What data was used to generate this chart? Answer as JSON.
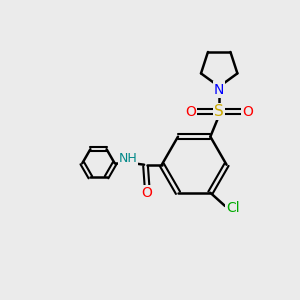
{
  "background_color": "#ebebeb",
  "bond_color": "#000000",
  "atom_colors": {
    "N": "#0000ff",
    "O": "#ff0000",
    "S": "#ccaa00",
    "Cl": "#00aa00",
    "H": "#008888",
    "C": "#000000"
  },
  "figsize": [
    3.0,
    3.0
  ],
  "dpi": 100
}
